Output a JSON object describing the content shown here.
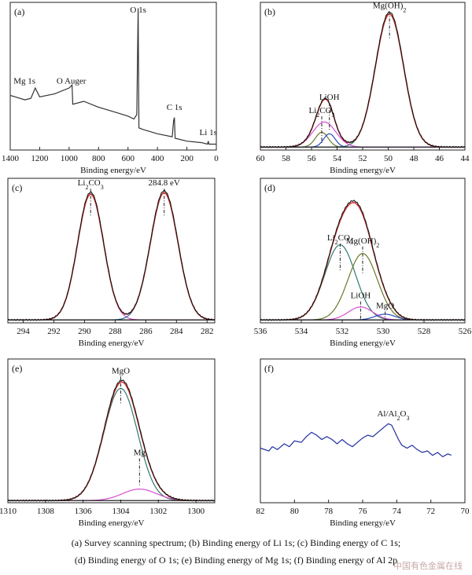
{
  "caption": {
    "line1": "(a) Survey  scanning spectrum; (b) Binding energy of Li 1s; (c) Binding energy of C 1s;",
    "line2": "(d) Binding energy of O 1s; (e) Binding energy of Mg 1s; (f) Binding energy of Al 2p"
  },
  "watermark": "中国有色金属在线",
  "chart_data": [
    {
      "id": "a",
      "type": "line",
      "panel_label": "(a)",
      "xlabel": "Binding energy/eV",
      "ylabel": "",
      "xlim": [
        1400,
        0
      ],
      "ylim": [
        0,
        100
      ],
      "xticks": [
        1400,
        1200,
        1000,
        800,
        600,
        400,
        200,
        0
      ],
      "annotations": [
        {
          "text": "Mg 1s",
          "x": 1303,
          "y": 45
        },
        {
          "text": "O Auger",
          "x": 985,
          "y": 45
        },
        {
          "text": "O 1s",
          "x": 531,
          "y": 93
        },
        {
          "text": "C 1s",
          "x": 285,
          "y": 27
        },
        {
          "text": "Li 1s",
          "x": 55,
          "y": 10
        }
      ],
      "series": [
        {
          "color": "#333333",
          "points": [
            [
              1400,
              37
            ],
            [
              1300,
              34
            ],
            [
              1260,
              35
            ],
            [
              1230,
              42
            ],
            [
              1200,
              36
            ],
            [
              1100,
              38
            ],
            [
              1000,
              42
            ],
            [
              980,
              44
            ],
            [
              975,
              31
            ],
            [
              900,
              33
            ],
            [
              800,
              29
            ],
            [
              700,
              26
            ],
            [
              600,
              23
            ],
            [
              560,
              21
            ],
            [
              540,
              24
            ],
            [
              531,
              96
            ],
            [
              526,
              15
            ],
            [
              500,
              14
            ],
            [
              400,
              11
            ],
            [
              300,
              9
            ],
            [
              290,
              20
            ],
            [
              285,
              22
            ],
            [
              280,
              8
            ],
            [
              200,
              6
            ],
            [
              100,
              5
            ],
            [
              60,
              4
            ],
            [
              55,
              6
            ],
            [
              50,
              4
            ],
            [
              0,
              4
            ]
          ]
        }
      ]
    },
    {
      "id": "b",
      "type": "line",
      "panel_label": "(b)",
      "xlabel": "Binding energy/eV",
      "ylabel": "",
      "xlim": [
        60,
        44
      ],
      "ylim": [
        0,
        100
      ],
      "xticks": [
        60,
        58,
        56,
        54,
        52,
        50,
        48,
        46,
        44
      ],
      "annotations": [
        {
          "text": "Mg(OH)",
          "sub": "2",
          "x": 49.9,
          "y": 96
        },
        {
          "text": "LiOH",
          "x": 54.6,
          "y": 34
        },
        {
          "text": "Li",
          "sub": "2",
          "after": "CO",
          "sub2": "3",
          "x": 55.2,
          "y": 25
        }
      ],
      "components": [
        {
          "name": "",
          "color": "#2f7a6f",
          "center": 49.9,
          "height": 90,
          "width": 1.1
        },
        {
          "name": "",
          "color": "#6b7a2a",
          "center": 55.2,
          "height": 10,
          "width": 0.5
        },
        {
          "name": "",
          "color": "#2a4cc0",
          "center": 54.6,
          "height": 9,
          "width": 0.45
        },
        {
          "name": "",
          "color": "#d84fd0",
          "center": 55.0,
          "height": 17,
          "width": 0.9
        }
      ],
      "envelope_color": "#d9322c",
      "raw_color": "#111111",
      "baseline": 2
    },
    {
      "id": "c",
      "type": "line",
      "panel_label": "(c)",
      "xlabel": "Binding energy/eV",
      "ylabel": "",
      "xlim": [
        295,
        281.5
      ],
      "ylim": [
        0,
        100
      ],
      "xticks": [
        294,
        292,
        290,
        288,
        286,
        284,
        282
      ],
      "annotations": [
        {
          "text": "Li",
          "sub": "2",
          "after": "CO",
          "sub2": "3",
          "x": 289.6,
          "y": 95
        },
        {
          "text": "284.8 eV",
          "x": 284.8,
          "y": 95
        }
      ],
      "components": [
        {
          "name": "",
          "color": "#d84fd0",
          "center": 289.6,
          "height": 87,
          "width": 0.85
        },
        {
          "name": "",
          "color": "#2a6e9a",
          "center": 284.8,
          "height": 88,
          "width": 0.9
        }
      ],
      "envelope_color": "#d9322c",
      "raw_color": "#111111",
      "baseline": 2
    },
    {
      "id": "d",
      "type": "line",
      "panel_label": "(d)",
      "xlabel": "Binding energy/eV",
      "ylabel": "",
      "xlim": [
        536,
        526
      ],
      "ylim": [
        0,
        100
      ],
      "xticks": [
        536,
        534,
        532,
        530,
        528,
        526
      ],
      "annotations": [
        {
          "text": "Li",
          "sub": "2",
          "after": "CO",
          "sub2": "3",
          "x": 532.1,
          "y": 57
        },
        {
          "text": "Mg(OH)",
          "sub": "2",
          "x": 531.0,
          "y": 55
        },
        {
          "text": "LiOH",
          "x": 531.1,
          "y": 17
        },
        {
          "text": "MgO",
          "x": 529.9,
          "y": 10
        }
      ],
      "components": [
        {
          "name": "",
          "color": "#2f7a6f",
          "center": 532.1,
          "height": 52,
          "width": 0.75
        },
        {
          "name": "",
          "color": "#6b7a2a",
          "center": 531.0,
          "height": 46,
          "width": 0.72
        },
        {
          "name": "",
          "color": "#d84fd0",
          "center": 531.1,
          "height": 9,
          "width": 0.6
        },
        {
          "name": "",
          "color": "#2a4cc0",
          "center": 529.9,
          "height": 4,
          "width": 0.5
        }
      ],
      "envelope_color": "#d9322c",
      "raw_color": "#111111",
      "baseline": 2
    },
    {
      "id": "e",
      "type": "line",
      "panel_label": "(e)",
      "xlabel": "Binding energy/eV",
      "ylabel": "",
      "xlim": [
        1310,
        1299
      ],
      "ylim": [
        0,
        100
      ],
      "xticks": [
        1310,
        1308,
        1306,
        1304,
        1302,
        1300
      ],
      "annotations": [
        {
          "text": "MgO",
          "x": 1304.0,
          "y": 90
        },
        {
          "text": "Mg",
          "x": 1303.0,
          "y": 33
        }
      ],
      "components": [
        {
          "name": "",
          "color": "#2f7a6f",
          "center": 1304.0,
          "height": 78,
          "width": 0.9
        },
        {
          "name": "",
          "color": "#d84fd0",
          "center": 1303.0,
          "height": 8,
          "width": 0.9
        }
      ],
      "envelope_color": "#d9322c",
      "raw_color": "#111111",
      "baseline": 1.5
    },
    {
      "id": "f",
      "type": "line",
      "panel_label": "(f)",
      "xlabel": "Binding energy/eV",
      "ylabel": "",
      "xlim": [
        82,
        70
      ],
      "ylim": [
        0,
        100
      ],
      "xticks": [
        82,
        80,
        78,
        76,
        74,
        72,
        70
      ],
      "annotations": [
        {
          "text": "Al/Al",
          "sub": "2",
          "after": "O",
          "sub2": "3",
          "x": 74.2,
          "y": 60
        }
      ],
      "series": [
        {
          "color": "#1f2fa0",
          "points": [
            [
              82,
              38
            ],
            [
              81.5,
              36
            ],
            [
              81.3,
              39
            ],
            [
              81,
              37
            ],
            [
              80.6,
              41
            ],
            [
              80.3,
              39
            ],
            [
              80,
              43
            ],
            [
              79.6,
              42
            ],
            [
              79.3,
              46
            ],
            [
              79,
              49
            ],
            [
              78.7,
              47
            ],
            [
              78.4,
              44
            ],
            [
              78.1,
              46
            ],
            [
              77.8,
              44
            ],
            [
              77.5,
              41
            ],
            [
              77.2,
              44
            ],
            [
              76.9,
              41
            ],
            [
              76.6,
              39
            ],
            [
              76.3,
              42
            ],
            [
              76,
              45
            ],
            [
              75.7,
              47
            ],
            [
              75.4,
              46
            ],
            [
              75.1,
              49
            ],
            [
              74.8,
              52
            ],
            [
              74.5,
              55
            ],
            [
              74.3,
              54
            ],
            [
              74.1,
              49
            ],
            [
              73.9,
              44
            ],
            [
              73.7,
              40
            ],
            [
              73.4,
              38
            ],
            [
              73.1,
              40
            ],
            [
              72.8,
              37
            ],
            [
              72.5,
              35
            ],
            [
              72.2,
              36
            ],
            [
              71.9,
              33
            ],
            [
              71.6,
              35
            ],
            [
              71.3,
              32
            ],
            [
              71,
              34
            ],
            [
              70.8,
              33
            ]
          ]
        }
      ]
    }
  ]
}
